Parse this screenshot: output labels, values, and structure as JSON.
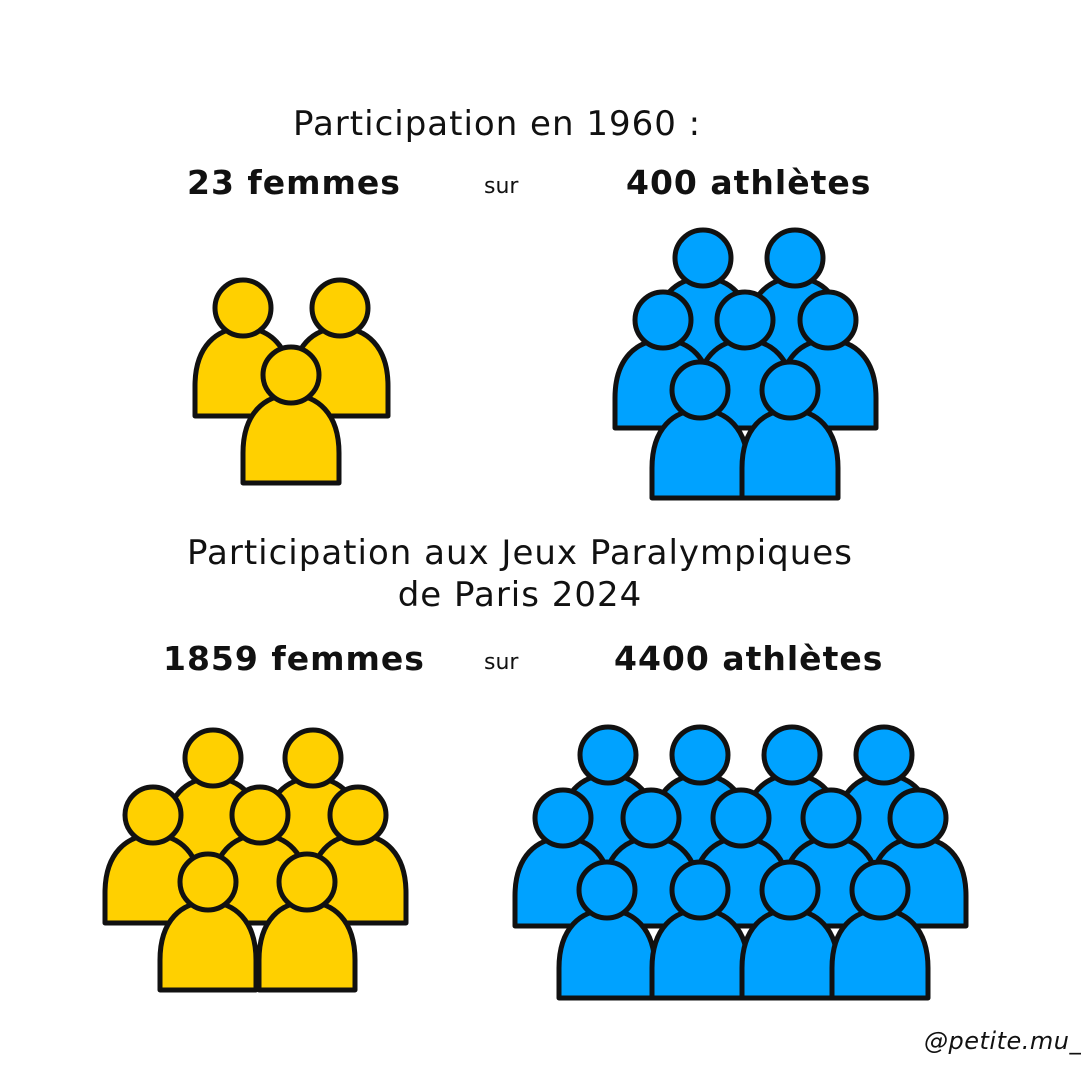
{
  "section_1960": {
    "title": "Participation en 1960 :",
    "women": "23 femmes",
    "connector": "sur",
    "athletes": "400 athlètes"
  },
  "section_2024": {
    "title_line1": "Participation aux Jeux Paralympiques",
    "title_line2": "de Paris 2024",
    "women": "1859 femmes",
    "connector": "sur",
    "athletes": "4400 athlètes"
  },
  "colors": {
    "women_fill": "#FFD000",
    "athletes_fill": "#00A2FF",
    "outline": "#111111"
  },
  "icons": {
    "women_1960": {
      "icon": "person-icon",
      "color": "yellow",
      "count_drawn": 3
    },
    "athletes_1960": {
      "icon": "person-icon",
      "color": "blue",
      "count_drawn": 7
    },
    "women_2024": {
      "icon": "person-icon",
      "color": "yellow",
      "count_drawn": 7
    },
    "athletes_2024": {
      "icon": "person-icon",
      "color": "blue",
      "count_drawn": 13
    }
  },
  "signature": "@petite.mu_"
}
